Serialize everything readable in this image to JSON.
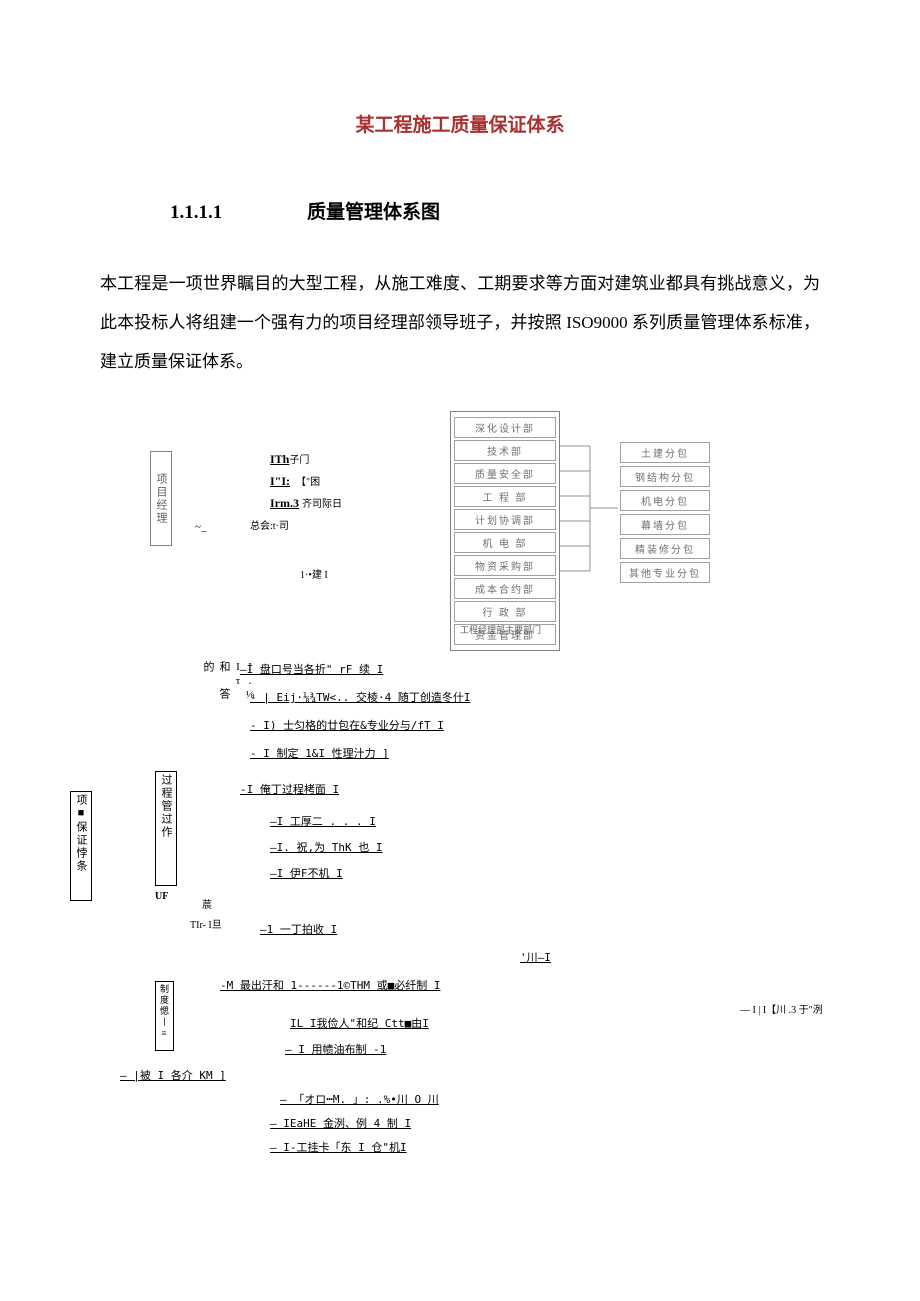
{
  "title": "某工程施工质量保证体系",
  "title_color": "#a83232",
  "section": {
    "num": "1.1.1.1",
    "heading": "质量管理体系图"
  },
  "body": "本工程是一项世界瞩目的大型工程，从施工难度、工期要求等方面对建筑业都具有挑战意义，为此本投标人将组建一个强有力的项目经理部领导班子，并按照 ISO9000 系列质量管理体系标准，建立质量保证体系。",
  "org": {
    "pm_label": "项目经理",
    "mid_lines": [
      {
        "a": "ITh",
        "b": "子门"
      },
      {
        "a": "I\"I:",
        "b": "【\"困"
      },
      {
        "a": "Irm.3",
        "b": "齐司际日"
      }
    ],
    "mid_foot": "总会:t·司",
    "small_note": "1·•建 I",
    "departments": [
      "深化设计部",
      "技术部",
      "质量安全部",
      "工 程 部",
      "计划协调部",
      "机 电 部",
      "物资采购部",
      "成本合约部",
      "行 政 部",
      "资金管理部"
    ],
    "dept_caption": "工程经理部主要部门",
    "subcontractors": [
      "土建分包",
      "钢结构分包",
      "机电分包",
      "幕墙分包",
      "精装修分包",
      "其他专业分包"
    ]
  },
  "tree": {
    "left_box": "项■保证悖条",
    "proc_box": "过程管过作",
    "proc_uf": "UF",
    "mid_vert": "I.⅛ Iτ 和 答 的",
    "pipa": "莀",
    "tlr": "TIr- I旦",
    "regime_box": "制度愢丨≡",
    "rows": [
      "—I 盘口号当各折\" rF 续                I",
      "-   | Eij·⅛¾TW<.. 交棱·4 随丁创造冬什I",
      "-  I) 士匀格的廿包在&专业分与/fT          I",
      "-  I 制定 1&I 性理汁力                 ]",
      "-I 俺丁过程栲面              I",
      "—I 工厚二 . . . I",
      "—I. 祝,为 ThK 也 I",
      "—I 伊F不机          I",
      "—1 一丁拍收         I",
      "                                            '川—I",
      "-M 最出汗和           1------1©THM 或■必纤制 I",
      "           IL I我俭人\"和纪 Ctt■由I",
      "—      I 用帻油布制    -1",
      "—  |被 I 各介 KM        ]",
      "—   「オロ┅M. 」: .%•川 O 川",
      "—  IEaHE 金洌、例 4 制  I",
      "—  I-工挂卡「东 I 仓\"机I"
    ],
    "far_right": "— I | I【川 .3 于\"洌"
  }
}
